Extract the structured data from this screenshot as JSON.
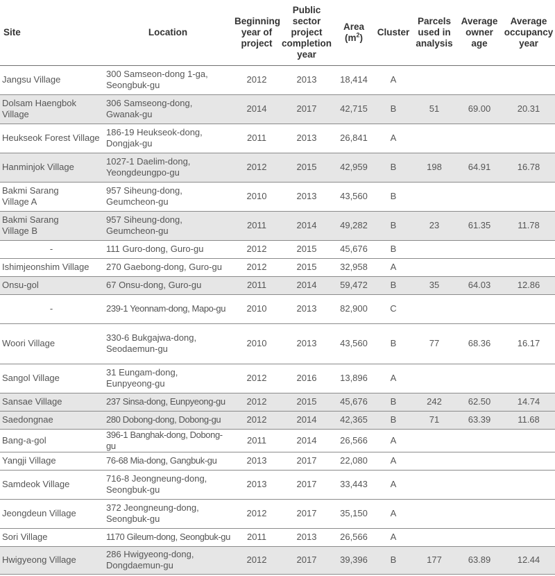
{
  "headers": {
    "site": "Site",
    "location": "Location",
    "beginning_year": [
      "Beginning",
      "year of",
      "project"
    ],
    "completion_year": [
      "Public",
      "sector",
      "project",
      "completion",
      "year"
    ],
    "area_label": "Area",
    "area_unit_prefix": "(m",
    "area_unit_sup": "2",
    "area_unit_suffix": ")",
    "cluster": "Cluster",
    "parcels": [
      "Parcels",
      "used in",
      "analysis"
    ],
    "owner_age": [
      "Average",
      "owner",
      "age"
    ],
    "occupancy": [
      "Average",
      "occupancy",
      "year"
    ]
  },
  "rows": [
    {
      "site": [
        "Jangsu Village"
      ],
      "location": [
        "300 Samseon-dong 1-ga,",
        "Seongbuk-gu"
      ],
      "begin": "2012",
      "complete": "2013",
      "area": "18,414",
      "cluster": "A",
      "parcels": "",
      "owner_age": "",
      "occupancy": ""
    },
    {
      "site": [
        "Dolsam Haengbok",
        "Village"
      ],
      "location": [
        "306 Samseong-dong,",
        "Gwanak-gu"
      ],
      "begin": "2014",
      "complete": "2017",
      "area": "42,715",
      "cluster": "B",
      "parcels": "51",
      "owner_age": "69.00",
      "occupancy": "20.31"
    },
    {
      "site": [
        "Heukseok Forest Village"
      ],
      "location": [
        "186-19 Heukseok-dong,",
        "Dongjak-gu"
      ],
      "begin": "2011",
      "complete": "2013",
      "area": "26,841",
      "cluster": "A",
      "parcels": "",
      "owner_age": "",
      "occupancy": ""
    },
    {
      "site": [
        "Hanminjok Village"
      ],
      "location": [
        "1027-1 Daelim-dong,",
        "Yeongdeungpo-gu"
      ],
      "begin": "2012",
      "complete": "2015",
      "area": "42,959",
      "cluster": "B",
      "parcels": "198",
      "owner_age": "64.91",
      "occupancy": "16.78"
    },
    {
      "site": [
        "Bakmi Sarang",
        "Village A"
      ],
      "location": [
        "957 Siheung-dong,",
        "Geumcheon-gu"
      ],
      "begin": "2010",
      "complete": "2013",
      "area": "43,560",
      "cluster": "B",
      "parcels": "",
      "owner_age": "",
      "occupancy": ""
    },
    {
      "site": [
        "Bakmi Sarang",
        "Village B"
      ],
      "location": [
        "957 Siheung-dong,",
        "Geumcheon-gu"
      ],
      "begin": "2011",
      "complete": "2014",
      "area": "49,282",
      "cluster": "B",
      "parcels": "23",
      "owner_age": "61.35",
      "occupancy": "11.78"
    },
    {
      "site": [
        "-"
      ],
      "location": [
        "111 Guro-dong, Guro-gu"
      ],
      "begin": "2012",
      "complete": "2015",
      "area": "45,676",
      "cluster": "B",
      "parcels": "",
      "owner_age": "",
      "occupancy": ""
    },
    {
      "site": [
        "Ishimjeonshim Village"
      ],
      "location": [
        "270 Gaebong-dong, Guro-gu"
      ],
      "begin": "2012",
      "complete": "2015",
      "area": "32,958",
      "cluster": "A",
      "parcels": "",
      "owner_age": "",
      "occupancy": ""
    },
    {
      "site": [
        "Onsu-gol"
      ],
      "location": [
        "67 Onsu-dong, Guro-gu"
      ],
      "begin": "2011",
      "complete": "2014",
      "area": "59,472",
      "cluster": "B",
      "parcels": "35",
      "owner_age": "64.03",
      "occupancy": "12.86"
    },
    {
      "site": [
        "-"
      ],
      "location": [
        "239-1 Yeonnam-dong, Mapo-gu"
      ],
      "begin": "2010",
      "complete": "2013",
      "area": "82,900",
      "cluster": "C",
      "parcels": "",
      "owner_age": "",
      "occupancy": ""
    },
    {
      "site": [
        "Woori Village"
      ],
      "location": [
        "330-6 Bukgajwa-dong,",
        "Seodaemun-gu"
      ],
      "begin": "2010",
      "complete": "2013",
      "area": "43,560",
      "cluster": "B",
      "parcels": "77",
      "owner_age": "68.36",
      "occupancy": "16.17"
    },
    {
      "site": [
        "Sangol Village"
      ],
      "location": [
        "31 Eungam-dong,",
        "Eunpyeong-gu"
      ],
      "begin": "2012",
      "complete": "2016",
      "area": "13,896",
      "cluster": "A",
      "parcels": "",
      "owner_age": "",
      "occupancy": ""
    },
    {
      "site": [
        "Sansae Village"
      ],
      "location": [
        "237 Sinsa-dong, Eunpyeong-gu"
      ],
      "begin": "2012",
      "complete": "2015",
      "area": "45,676",
      "cluster": "B",
      "parcels": "242",
      "owner_age": "62.50",
      "occupancy": "14.74"
    },
    {
      "site": [
        "Saedongnae"
      ],
      "location": [
        "280 Dobong-dong, Dobong-gu"
      ],
      "begin": "2012",
      "complete": "2014",
      "area": "42,365",
      "cluster": "B",
      "parcels": "71",
      "owner_age": "63.39",
      "occupancy": "11.68"
    },
    {
      "site": [
        "Bang-a-gol"
      ],
      "location": [
        "396-1 Banghak-dong, Dobong-gu"
      ],
      "begin": "2011",
      "complete": "2014",
      "area": "26,566",
      "cluster": "A",
      "parcels": "",
      "owner_age": "",
      "occupancy": ""
    },
    {
      "site": [
        "Yangji Village"
      ],
      "location": [
        "76-68 Mia-dong, Gangbuk-gu"
      ],
      "begin": "2013",
      "complete": "2017",
      "area": "22,080",
      "cluster": "A",
      "parcels": "",
      "owner_age": "",
      "occupancy": ""
    },
    {
      "site": [
        "Samdeok Village"
      ],
      "location": [
        "716-8 Jeongneung-dong,",
        "Seongbuk-gu"
      ],
      "begin": "2013",
      "complete": "2017",
      "area": "33,443",
      "cluster": "A",
      "parcels": "",
      "owner_age": "",
      "occupancy": ""
    },
    {
      "site": [
        "Jeongdeun Village"
      ],
      "location": [
        "372 Jeongneung-dong,",
        "Seongbuk-gu"
      ],
      "begin": "2012",
      "complete": "2017",
      "area": "35,150",
      "cluster": "A",
      "parcels": "",
      "owner_age": "",
      "occupancy": ""
    },
    {
      "site": [
        "Sori Village"
      ],
      "location": [
        "1170 Gileum-dong, Seongbuk-gu"
      ],
      "begin": "2011",
      "complete": "2013",
      "area": "26,566",
      "cluster": "A",
      "parcels": "",
      "owner_age": "",
      "occupancy": ""
    },
    {
      "site": [
        "Hwigyeong Village"
      ],
      "location": [
        "286 Hwigyeong-dong,",
        "Dongdaemun-gu"
      ],
      "begin": "2012",
      "complete": "2017",
      "area": "39,396",
      "cluster": "B",
      "parcels": "177",
      "owner_age": "63.89",
      "occupancy": "12.44"
    }
  ]
}
